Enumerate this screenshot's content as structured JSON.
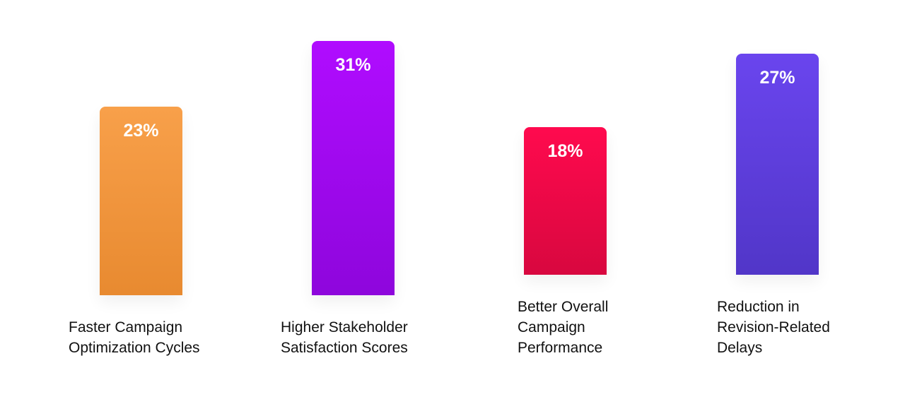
{
  "chart_data": {
    "type": "bar",
    "categories": [
      "Faster Campaign Optimization Cycles",
      "Higher Stakeholder Satisfaction Scores",
      "Better Overall Campaign Performance",
      "Reduction in Revision-Related Delays"
    ],
    "category_lines": [
      [
        "Faster Campaign",
        "Optimization Cycles"
      ],
      [
        "Higher Stakeholder",
        "Satisfaction Scores"
      ],
      [
        "Better Overall",
        "Campaign",
        "Performance"
      ],
      [
        "Reduction in",
        "Revision-Related",
        "Delays"
      ]
    ],
    "values": [
      23,
      31,
      18,
      27
    ],
    "value_labels": [
      "23%",
      "31%",
      "18%",
      "27%"
    ],
    "colors": [
      [
        "#f8a04a",
        "#e88a30"
      ],
      [
        "#b00cff",
        "#8e06dc"
      ],
      [
        "#ff0a4e",
        "#d8073f"
      ],
      [
        "#6a45ee",
        "#5136c8"
      ]
    ],
    "title": "",
    "xlabel": "",
    "ylabel": "",
    "grid": false
  }
}
